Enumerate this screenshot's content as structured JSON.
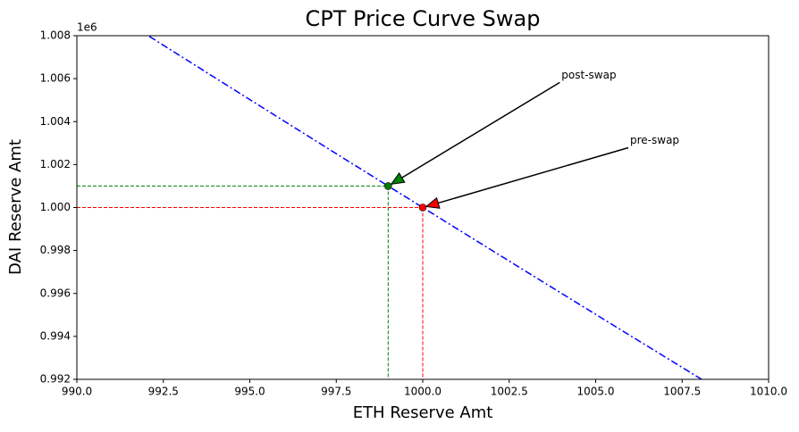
{
  "chart_data": {
    "type": "line",
    "title": "CPT Price Curve Swap",
    "x_label": "ETH Reserve Amt",
    "y_label": "DAI Reserve Amt",
    "y_offset_label": "1e6",
    "xlim": [
      990,
      1010
    ],
    "ylim": [
      992000,
      1008000
    ],
    "xticks": [
      {
        "value": 990,
        "label": "990.0"
      },
      992.5,
      {
        "value": 995,
        "label": "995.0"
      },
      997.5,
      {
        "value": 1000,
        "label": "1000.0"
      },
      1002.5,
      {
        "value": 1005,
        "label": "1005.0"
      },
      1007.5,
      {
        "value": 1010,
        "label": "1010.0"
      }
    ],
    "yticks": [
      {
        "value": 992000,
        "label": "0.992"
      },
      {
        "value": 994000,
        "label": "0.994"
      },
      {
        "value": 996000,
        "label": "0.996"
      },
      {
        "value": 998000,
        "label": "0.998"
      },
      {
        "value": 1000000,
        "label": "1.000"
      },
      {
        "value": 1002000,
        "label": "1.002"
      },
      {
        "value": 1004000,
        "label": "1.004"
      },
      {
        "value": 1006000,
        "label": "1.006"
      },
      {
        "value": 1008000,
        "label": "1.008"
      }
    ],
    "curve": {
      "color": "#0000ff",
      "x": [
        990,
        992,
        994,
        996,
        998,
        1000,
        1002,
        1004,
        1006,
        1008,
        1010
      ],
      "y": [
        1010101,
        1008065,
        1006036,
        1004016,
        1002004,
        1000000,
        998004,
        996016,
        994036,
        992063,
        990099
      ]
    },
    "points": [
      {
        "label": "pre-swap",
        "x": 1000,
        "y": 1000000,
        "color": "#ff0000"
      },
      {
        "label": "post-swap",
        "x": 999,
        "y": 1001001,
        "color": "#008000"
      }
    ]
  }
}
